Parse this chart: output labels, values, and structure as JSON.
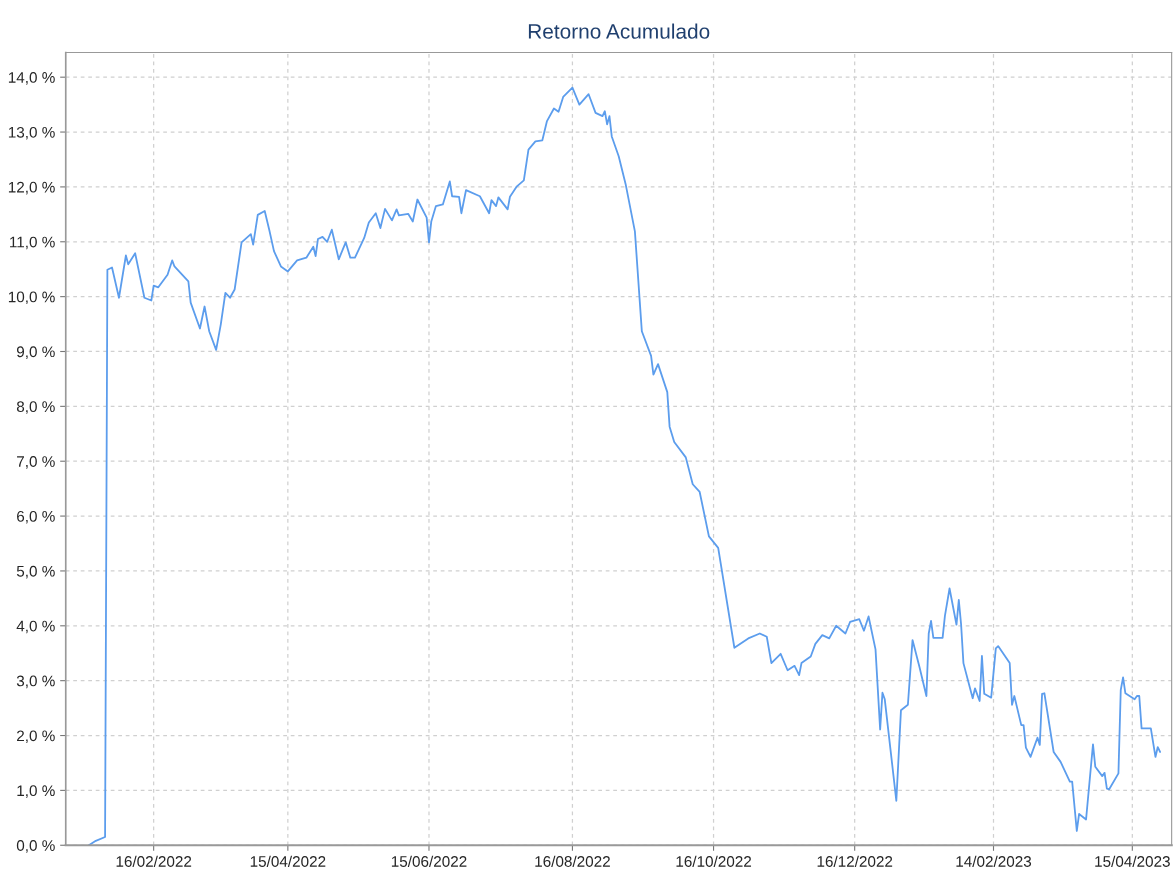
{
  "chart_data": {
    "type": "line",
    "title": "Retorno Acumulado",
    "xlim": [
      "2022-01-09",
      "2023-05-02"
    ],
    "xticks": [
      {
        "value": "2022-02-16",
        "label": "16/02/2022"
      },
      {
        "value": "2022-04-15",
        "label": "15/04/2022"
      },
      {
        "value": "2022-06-15",
        "label": "15/06/2022"
      },
      {
        "value": "2022-08-16",
        "label": "16/08/2022"
      },
      {
        "value": "2022-10-16",
        "label": "16/10/2022"
      },
      {
        "value": "2022-12-16",
        "label": "16/12/2022"
      },
      {
        "value": "2023-02-14",
        "label": "14/02/2023"
      },
      {
        "value": "2023-04-15",
        "label": "15/04/2023"
      }
    ],
    "ylim": [
      0,
      14.45
    ],
    "yticks": [
      {
        "value": 0,
        "label": "0,0 %"
      },
      {
        "value": 1,
        "label": "1,0 %"
      },
      {
        "value": 2,
        "label": "2,0 %"
      },
      {
        "value": 3,
        "label": "3,0 %"
      },
      {
        "value": 4,
        "label": "4,0 %"
      },
      {
        "value": 5,
        "label": "5,0 %"
      },
      {
        "value": 6,
        "label": "6,0 %"
      },
      {
        "value": 7,
        "label": "7,0 %"
      },
      {
        "value": 8,
        "label": "8,0 %"
      },
      {
        "value": 9,
        "label": "9,0 %"
      },
      {
        "value": 10,
        "label": "10,0 %"
      },
      {
        "value": 11,
        "label": "11,0 %"
      },
      {
        "value": 12,
        "label": "12,0 %"
      },
      {
        "value": 13,
        "label": "13,0 %"
      },
      {
        "value": 14,
        "label": "14,0 %"
      }
    ],
    "grid": true,
    "line_style": "solid",
    "series": [
      {
        "color": "#5c9ded",
        "x": [
          "2022-01-19",
          "2022-01-22",
          "2022-01-26",
          "2022-01-27",
          "2022-01-29",
          "2022-02-01",
          "2022-02-04",
          "2022-02-05",
          "2022-02-08",
          "2022-02-12",
          "2022-02-15",
          "2022-02-16",
          "2022-02-18",
          "2022-02-22",
          "2022-02-24",
          "2022-02-25",
          "2022-03-03",
          "2022-03-04",
          "2022-03-08",
          "2022-03-10",
          "2022-03-12",
          "2022-03-15",
          "2022-03-17",
          "2022-03-19",
          "2022-03-21",
          "2022-03-23",
          "2022-03-26",
          "2022-03-30",
          "2022-03-31",
          "2022-04-02",
          "2022-04-05",
          "2022-04-07",
          "2022-04-09",
          "2022-04-12",
          "2022-04-15",
          "2022-04-19",
          "2022-04-23",
          "2022-04-26",
          "2022-04-27",
          "2022-04-28",
          "2022-04-30",
          "2022-05-02",
          "2022-05-04",
          "2022-05-07",
          "2022-05-10",
          "2022-05-12",
          "2022-05-14",
          "2022-05-18",
          "2022-05-20",
          "2022-05-23",
          "2022-05-25",
          "2022-05-27",
          "2022-05-30",
          "2022-06-01",
          "2022-06-02",
          "2022-06-06",
          "2022-06-08",
          "2022-06-10",
          "2022-06-14",
          "2022-06-15",
          "2022-06-16",
          "2022-06-18",
          "2022-06-21",
          "2022-06-24",
          "2022-06-25",
          "2022-06-28",
          "2022-06-29",
          "2022-07-01",
          "2022-07-07",
          "2022-07-11",
          "2022-07-12",
          "2022-07-14",
          "2022-07-15",
          "2022-07-19",
          "2022-07-20",
          "2022-07-23",
          "2022-07-26",
          "2022-07-28",
          "2022-07-31",
          "2022-08-03",
          "2022-08-05",
          "2022-08-08",
          "2022-08-10",
          "2022-08-12",
          "2022-08-16",
          "2022-08-19",
          "2022-08-23",
          "2022-08-26",
          "2022-08-29",
          "2022-08-30",
          "2022-08-31",
          "2022-09-01",
          "2022-09-02",
          "2022-09-05",
          "2022-09-08",
          "2022-09-12",
          "2022-09-15",
          "2022-09-19",
          "2022-09-20",
          "2022-09-22",
          "2022-09-26",
          "2022-09-27",
          "2022-09-29",
          "2022-10-04",
          "2022-10-07",
          "2022-10-10",
          "2022-10-14",
          "2022-10-18",
          "2022-10-25",
          "2022-10-31",
          "2022-11-05",
          "2022-11-08",
          "2022-11-10",
          "2022-11-14",
          "2022-11-17",
          "2022-11-20",
          "2022-11-22",
          "2022-11-23",
          "2022-11-27",
          "2022-11-29",
          "2022-12-02",
          "2022-12-05",
          "2022-12-08",
          "2022-12-12",
          "2022-12-14",
          "2022-12-18",
          "2022-12-20",
          "2022-12-22",
          "2022-12-25",
          "2022-12-27",
          "2022-12-28",
          "2022-12-29",
          "2023-01-03",
          "2023-01-05",
          "2023-01-08",
          "2023-01-10",
          "2023-01-13",
          "2023-01-16",
          "2023-01-17",
          "2023-01-18",
          "2023-01-19",
          "2023-01-23",
          "2023-01-24",
          "2023-01-26",
          "2023-01-29",
          "2023-01-30",
          "2023-01-31",
          "2023-02-01",
          "2023-02-05",
          "2023-02-06",
          "2023-02-08",
          "2023-02-09",
          "2023-02-10",
          "2023-02-13",
          "2023-02-15",
          "2023-02-16",
          "2023-02-21",
          "2023-02-22",
          "2023-02-23",
          "2023-02-26",
          "2023-02-27",
          "2023-02-28",
          "2023-03-02",
          "2023-03-05",
          "2023-03-06",
          "2023-03-07",
          "2023-03-08",
          "2023-03-12",
          "2023-03-15",
          "2023-03-19",
          "2023-03-20",
          "2023-03-22",
          "2023-03-23",
          "2023-03-26",
          "2023-03-29",
          "2023-03-30",
          "2023-04-02",
          "2023-04-03",
          "2023-04-04",
          "2023-04-05",
          "2023-04-09",
          "2023-04-10",
          "2023-04-11",
          "2023-04-12",
          "2023-04-16",
          "2023-04-17",
          "2023-04-18",
          "2023-04-19",
          "2023-04-23",
          "2023-04-25",
          "2023-04-26",
          "2023-04-27"
        ],
        "values": [
          0,
          0.08,
          0.15,
          10.49,
          10.53,
          9.98,
          10.75,
          10.59,
          10.79,
          9.98,
          9.93,
          10.2,
          10.17,
          10.4,
          10.66,
          10.55,
          10.28,
          9.89,
          9.42,
          9.82,
          9.37,
          9.03,
          9.49,
          10.07,
          9.98,
          10.13,
          10.99,
          11.14,
          10.95,
          11.49,
          11.56,
          11.21,
          10.83,
          10.55,
          10.46,
          10.66,
          10.71,
          10.91,
          10.74,
          11.05,
          11.09,
          11.0,
          11.22,
          10.68,
          10.99,
          10.71,
          10.71,
          11.07,
          11.35,
          11.52,
          11.25,
          11.6,
          11.39,
          11.59,
          11.48,
          11.51,
          11.37,
          11.77,
          11.44,
          10.99,
          11.37,
          11.65,
          11.68,
          12.1,
          11.83,
          11.82,
          11.52,
          11.94,
          11.83,
          11.52,
          11.76,
          11.65,
          11.81,
          11.59,
          11.82,
          12.01,
          12.12,
          12.68,
          12.83,
          12.85,
          13.2,
          13.43,
          13.37,
          13.64,
          13.81,
          13.5,
          13.69,
          13.35,
          13.29,
          13.38,
          13.14,
          13.29,
          12.92,
          12.56,
          12.05,
          11.19,
          9.37,
          8.92,
          8.58,
          8.77,
          8.26,
          7.63,
          7.35,
          7.07,
          6.58,
          6.44,
          5.63,
          5.42,
          3.6,
          3.77,
          3.86,
          3.8,
          3.32,
          3.49,
          3.19,
          3.27,
          3.1,
          3.32,
          3.44,
          3.67,
          3.83,
          3.77,
          4.0,
          3.86,
          4.07,
          4.12,
          3.91,
          4.17,
          3.57,
          2.11,
          2.78,
          2.66,
          0.81,
          2.46,
          2.56,
          3.74,
          3.25,
          2.72,
          3.86,
          4.09,
          3.78,
          3.78,
          4.18,
          4.68,
          4.02,
          4.47,
          4.02,
          3.32,
          2.68,
          2.86,
          2.63,
          3.45,
          2.76,
          2.69,
          3.59,
          3.63,
          3.32,
          2.56,
          2.72,
          2.19,
          2.19,
          1.78,
          1.61,
          1.96,
          1.83,
          2.76,
          2.77,
          1.7,
          1.52,
          1.16,
          1.16,
          0.26,
          0.57,
          0.47,
          1.84,
          1.43,
          1.26,
          1.32,
          1.03,
          1.02,
          1.31,
          2.83,
          3.06,
          2.77,
          2.66,
          2.72,
          2.72,
          2.13,
          2.13,
          1.61,
          1.79,
          1.7
        ]
      }
    ]
  }
}
